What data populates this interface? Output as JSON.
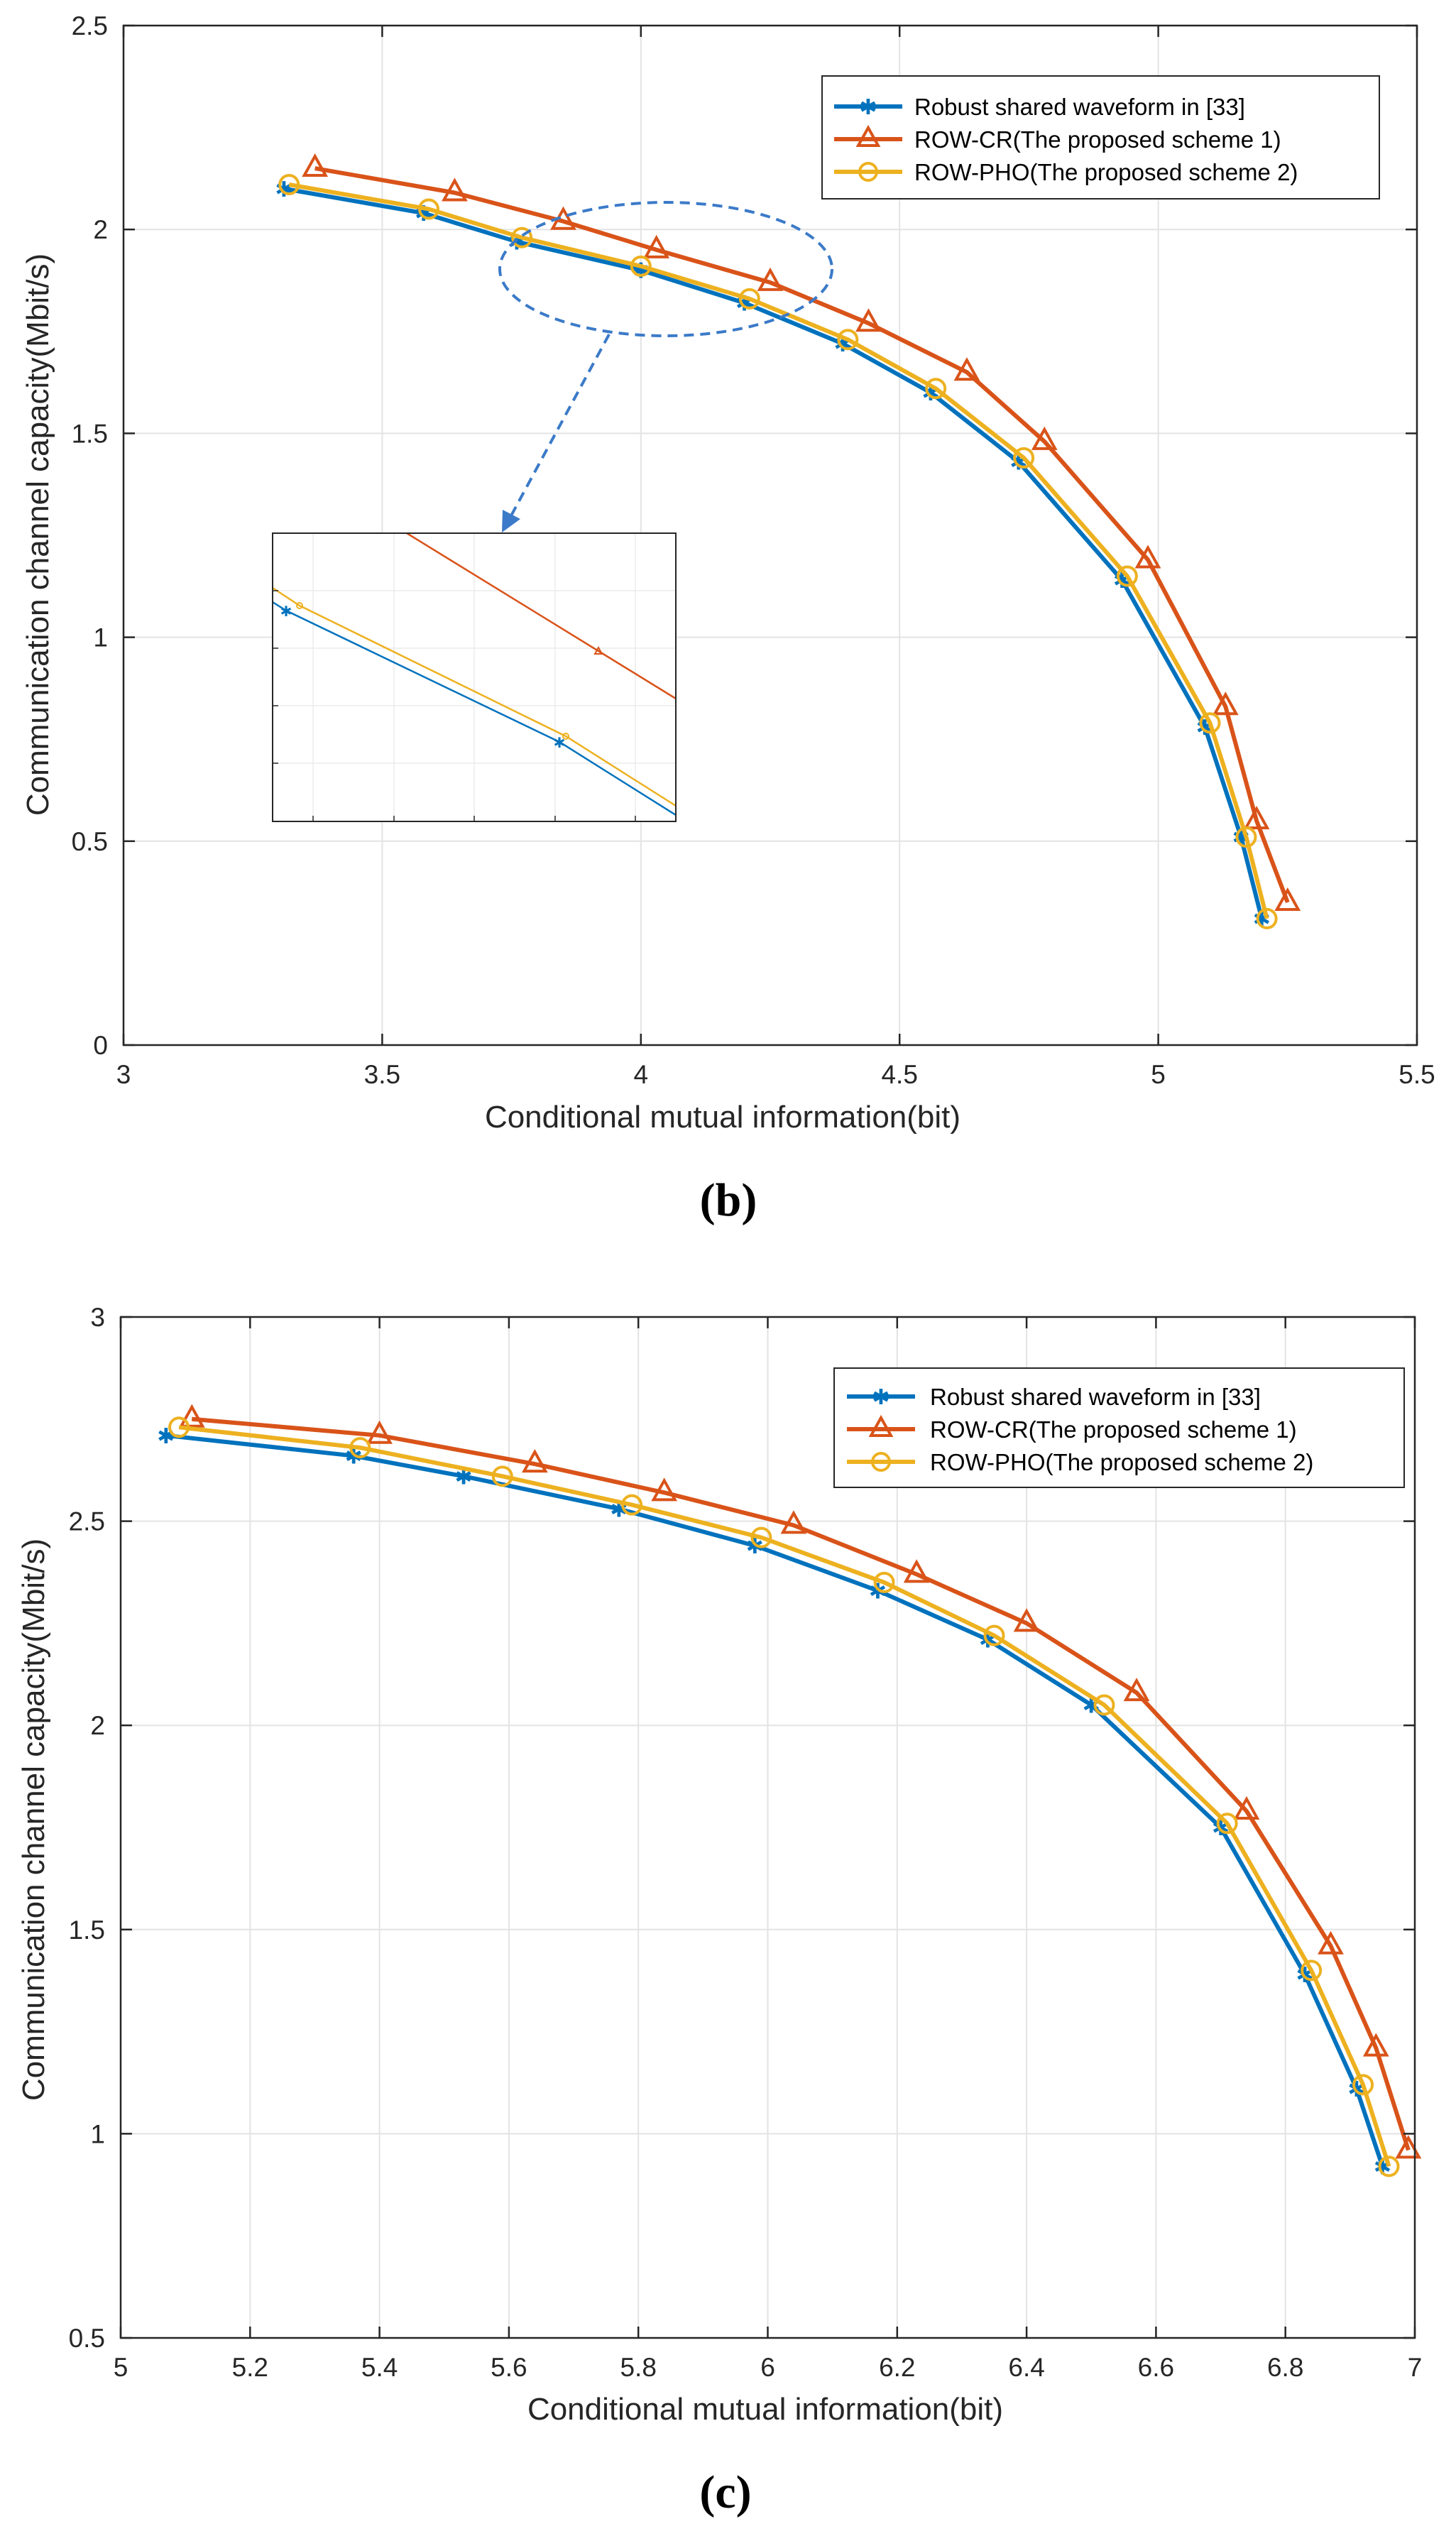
{
  "figure": {
    "colors": {
      "blue": "#0072BD",
      "red": "#D95319",
      "yellow": "#EDB120",
      "grid": "#E3E3E3",
      "axis": "#262626",
      "dash": "#3B7AC8"
    }
  },
  "chart_data": [
    {
      "id": "b",
      "type": "line",
      "caption": "(b)",
      "xlabel": "Conditional mutual information(bit)",
      "ylabel": "Communication channel capacity(Mbit/s)",
      "xlim": [
        3,
        5.5
      ],
      "ylim": [
        0,
        2.5
      ],
      "xticks": [
        3,
        3.5,
        4,
        4.5,
        5,
        5.5
      ],
      "xtick_labels": [
        "3",
        "3.5",
        "4",
        "4.5",
        "5",
        "5.5"
      ],
      "yticks": [
        0,
        0.5,
        1,
        1.5,
        2,
        2.5
      ],
      "ytick_labels": [
        "0",
        "0.5",
        "1",
        "1.5",
        "2",
        "2.5"
      ],
      "grid": true,
      "legend_position": "top-right",
      "series": [
        {
          "name": "Robust shared waveform in [33]",
          "color": "#0072BD",
          "marker": "asterisk",
          "x": [
            3.31,
            3.58,
            3.76,
            4.0,
            4.2,
            4.39,
            4.56,
            4.73,
            4.93,
            5.09,
            5.16,
            5.2
          ],
          "y": [
            2.1,
            2.04,
            1.97,
            1.9,
            1.82,
            1.72,
            1.6,
            1.43,
            1.14,
            0.78,
            0.51,
            0.31
          ]
        },
        {
          "name": "ROW-CR(The proposed scheme 1)",
          "color": "#D95319",
          "marker": "triangle",
          "x": [
            3.37,
            3.64,
            3.85,
            4.03,
            4.25,
            4.44,
            4.63,
            4.78,
            4.98,
            5.13,
            5.19,
            5.25
          ],
          "y": [
            2.15,
            2.09,
            2.02,
            1.95,
            1.87,
            1.77,
            1.65,
            1.48,
            1.19,
            0.83,
            0.55,
            0.35
          ]
        },
        {
          "name": "ROW-PHO(The proposed scheme 2)",
          "color": "#EDB120",
          "marker": "circle",
          "x": [
            3.32,
            3.59,
            3.77,
            4.0,
            4.21,
            4.4,
            4.57,
            4.74,
            4.94,
            5.1,
            5.17,
            5.21
          ],
          "y": [
            2.11,
            2.05,
            1.98,
            1.91,
            1.83,
            1.73,
            1.61,
            1.44,
            1.15,
            0.79,
            0.51,
            0.31
          ]
        }
      ],
      "inset": {
        "xlim": [
          3.7,
          4.3
        ],
        "ylim": [
          1.7,
          2.1
        ],
        "content": "zoom of the region inside the dashed ellipse"
      }
    },
    {
      "id": "c",
      "type": "line",
      "caption": "(c)",
      "xlabel": "Conditional mutual information(bit)",
      "ylabel": "Communication channel capacity(Mbit/s)",
      "xlim": [
        5,
        7
      ],
      "ylim": [
        0.5,
        3
      ],
      "xticks": [
        5,
        5.2,
        5.4,
        5.6,
        5.8,
        6,
        6.2,
        6.4,
        6.6,
        6.8,
        7
      ],
      "xtick_labels": [
        "5",
        "5.2",
        "5.4",
        "5.6",
        "5.8",
        "6",
        "6.2",
        "6.4",
        "6.6",
        "6.8",
        "7"
      ],
      "yticks": [
        0.5,
        1,
        1.5,
        2,
        2.5,
        3
      ],
      "ytick_labels": [
        "0.5",
        "1",
        "1.5",
        "2",
        "2.5",
        "3"
      ],
      "grid": true,
      "legend_position": "top-right",
      "series": [
        {
          "name": "Robust shared waveform in [33]",
          "color": "#0072BD",
          "marker": "asterisk",
          "x": [
            5.07,
            5.36,
            5.53,
            5.77,
            5.98,
            6.17,
            6.34,
            6.5,
            6.7,
            6.83,
            6.91,
            6.95
          ],
          "y": [
            2.71,
            2.66,
            2.61,
            2.53,
            2.44,
            2.33,
            2.21,
            2.05,
            1.75,
            1.39,
            1.11,
            0.92
          ]
        },
        {
          "name": "ROW-CR(The proposed scheme 1)",
          "color": "#D95319",
          "marker": "triangle",
          "x": [
            5.11,
            5.4,
            5.64,
            5.84,
            6.04,
            6.23,
            6.4,
            6.57,
            6.74,
            6.87,
            6.94,
            6.99
          ],
          "y": [
            2.75,
            2.71,
            2.64,
            2.57,
            2.49,
            2.37,
            2.25,
            2.08,
            1.79,
            1.46,
            1.21,
            0.96
          ]
        },
        {
          "name": "ROW-PHO(The proposed scheme 2)",
          "color": "#EDB120",
          "marker": "circle",
          "x": [
            5.09,
            5.37,
            5.59,
            5.79,
            5.99,
            6.18,
            6.35,
            6.52,
            6.71,
            6.84,
            6.92,
            6.96
          ],
          "y": [
            2.73,
            2.68,
            2.61,
            2.54,
            2.46,
            2.35,
            2.22,
            2.05,
            1.76,
            1.4,
            1.12,
            0.92
          ]
        }
      ]
    }
  ]
}
